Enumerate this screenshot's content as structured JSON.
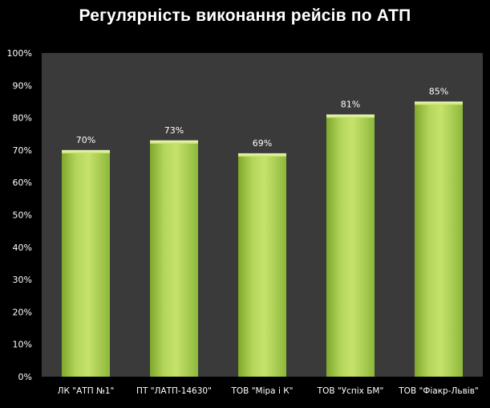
{
  "chart_data": {
    "type": "bar",
    "title": "Регулярність виконання рейсів по АТП",
    "xlabel": "",
    "ylabel": "",
    "categories": [
      "ЛК \"АТП №1\"",
      "ПТ \"ЛАТП-14630\"",
      "ТОВ \"Міра і К\"",
      "ТОВ \"Успіх БМ\"",
      "ТОВ \"Фіакр-Львів\""
    ],
    "values": [
      70,
      73,
      69,
      81,
      85
    ],
    "data_labels": [
      "70%",
      "73%",
      "69%",
      "81%",
      "85%"
    ],
    "ylim": [
      0,
      100
    ],
    "yticks": [
      0,
      10,
      20,
      30,
      40,
      50,
      60,
      70,
      80,
      90,
      100
    ],
    "ytick_labels": [
      "0%",
      "10%",
      "20%",
      "30%",
      "40%",
      "50%",
      "60%",
      "70%",
      "80%",
      "90%",
      "100%"
    ],
    "grid": false,
    "legend": "none",
    "colors": {
      "background": "#000000",
      "plot_area": "#3a3a3a",
      "bar_light": "#c8e36e",
      "bar_mid": "#a3c94a",
      "bar_dark": "#6f9a24",
      "text": "#ffffff"
    }
  }
}
